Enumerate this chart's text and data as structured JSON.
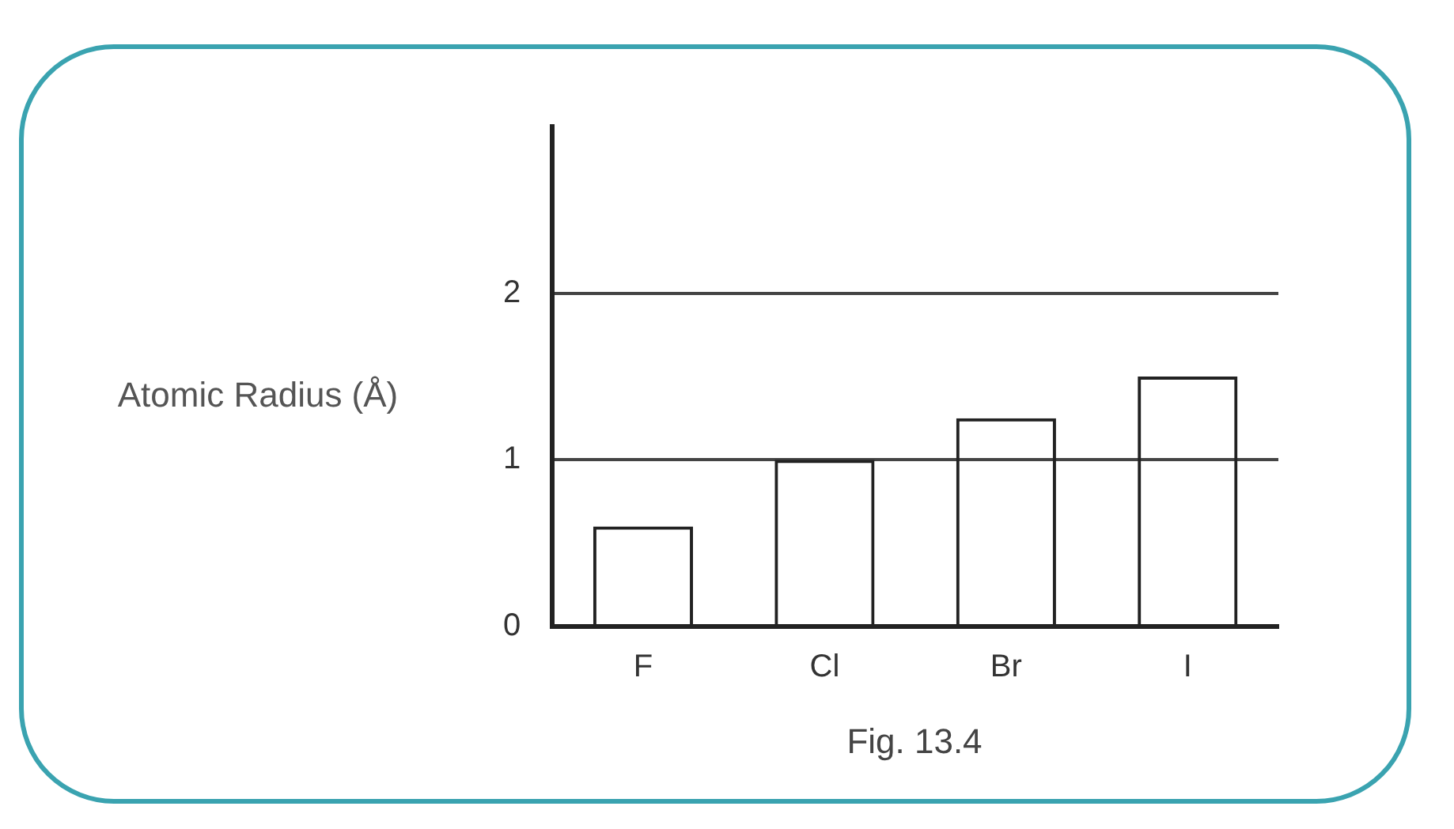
{
  "chart_data": {
    "type": "bar",
    "categories": [
      "F",
      "Cl",
      "Br",
      "I"
    ],
    "values": [
      0.6,
      1.0,
      1.25,
      1.5
    ],
    "color": "#222222",
    "ylabel": "Atomic Radius (Å)",
    "ylim": [
      0,
      3
    ],
    "yticks": [
      0,
      1,
      2
    ],
    "grid": "y",
    "legend": false,
    "annotations": [
      "Fig. 13.4"
    ]
  }
}
